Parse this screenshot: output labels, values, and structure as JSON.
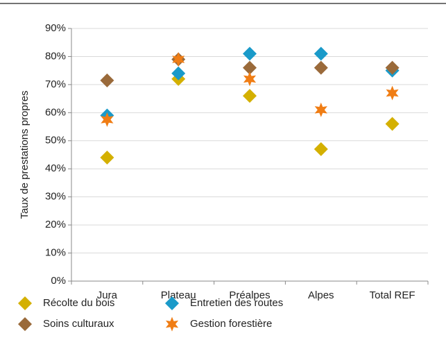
{
  "chart_data": {
    "type": "scatter",
    "y_label": "Taux de prestations propres",
    "categories": [
      "Jura",
      "Plateau",
      "Préalpes",
      "Alpes",
      "Total REF"
    ],
    "series": [
      {
        "name": "Récolte du bois",
        "color": "#d4b000",
        "marker": "diamond",
        "values": [
          44,
          72,
          66,
          47,
          56
        ]
      },
      {
        "name": "Entretien des routes",
        "color": "#1a9ac9",
        "marker": "diamond",
        "values": [
          59,
          74,
          81,
          81,
          75
        ]
      },
      {
        "name": "Soins culturaux",
        "color": "#9a6a3a",
        "marker": "diamond",
        "values": [
          71.5,
          79,
          76,
          76,
          76
        ]
      },
      {
        "name": "Gestion forestière",
        "color": "#f07d14",
        "marker": "star",
        "values": [
          57.5,
          79,
          72,
          61,
          67
        ]
      }
    ],
    "ylim": [
      0,
      90
    ],
    "yticks": [
      {
        "value": 0,
        "label": "0%"
      },
      {
        "value": 10,
        "label": "10%"
      },
      {
        "value": 20,
        "label": "20%"
      },
      {
        "value": 30,
        "label": "30%"
      },
      {
        "value": 40,
        "label": "40%"
      },
      {
        "value": 50,
        "label": "50%"
      },
      {
        "value": 60,
        "label": "60%"
      },
      {
        "value": 70,
        "label": "70%"
      },
      {
        "value": 80,
        "label": "80%"
      },
      {
        "value": 90,
        "label": "90%"
      }
    ],
    "grid": true,
    "legend": "bottom"
  }
}
